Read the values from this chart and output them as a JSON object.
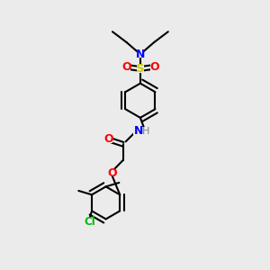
{
  "background_color": "#ebebeb",
  "atom_colors": {
    "C": "#000000",
    "H": "#7f7f7f",
    "N": "#0000ff",
    "O": "#ff0000",
    "S": "#cccc00",
    "Cl": "#00bb00"
  },
  "bond_color": "#000000",
  "bond_lw": 1.5,
  "double_sep": 0.08,
  "figsize": [
    3.0,
    3.0
  ],
  "dpi": 100
}
